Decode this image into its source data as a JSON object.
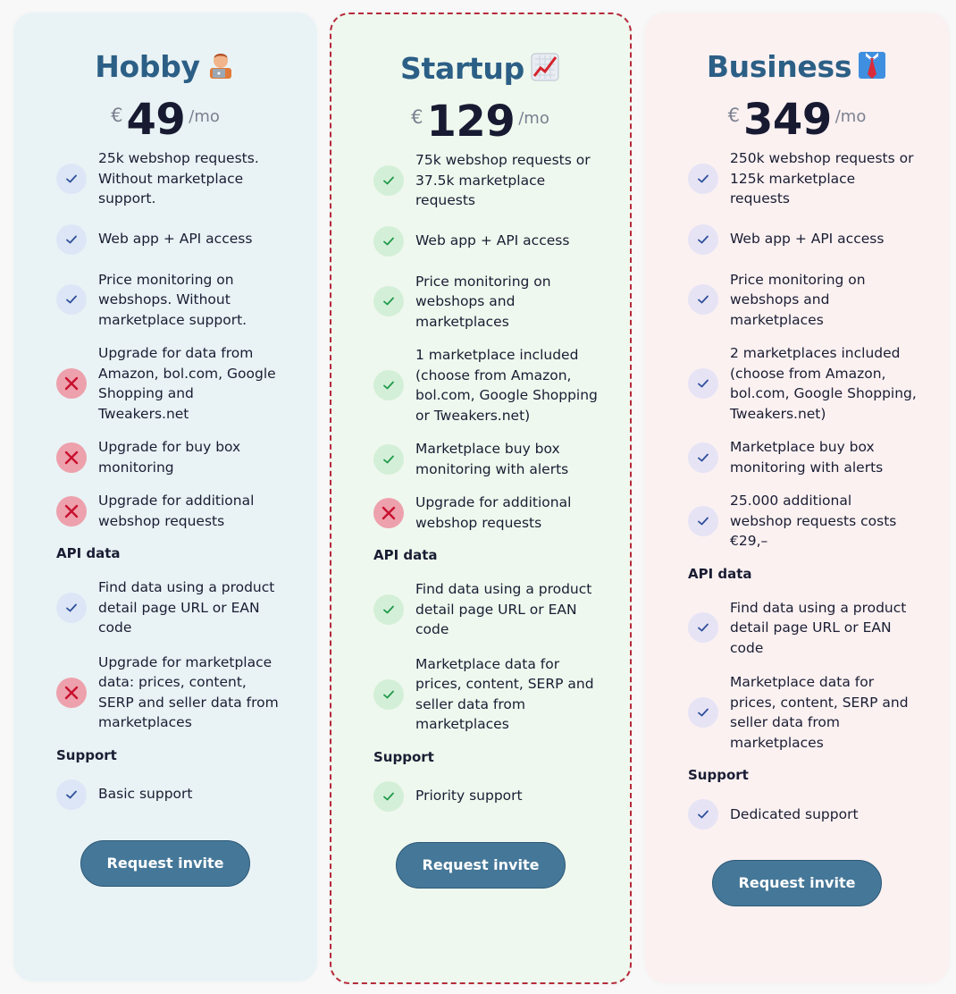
{
  "colors": {
    "check_blue_bg": "#dde6f6",
    "check_blue": "#2f4f9a",
    "check_green_bg": "#d4efd8",
    "check_green": "#1f9a4a",
    "check_purple_bg": "#e6e3f5",
    "check_purple": "#2f4f9a",
    "cross_bg": "#eda1ad",
    "cross": "#c8102e",
    "button": "#457798"
  },
  "plans": [
    {
      "name": "Hobby",
      "emoji": "🧑‍💻",
      "currency": "€",
      "amount": "49",
      "period": "/mo",
      "button": "Request invite",
      "features": [
        {
          "icon": "check",
          "text": "25k webshop requests. Without marketplace support."
        },
        {
          "icon": "check",
          "text": "Web app + API access"
        },
        {
          "icon": "check",
          "text": "Price monitoring on webshops. Without marketplace support."
        },
        {
          "icon": "cross",
          "text": "Upgrade for data from Amazon, bol.com, Google Shopping and Tweakers.net"
        },
        {
          "icon": "cross",
          "text": "Upgrade for buy box monitoring"
        },
        {
          "icon": "cross",
          "text": "Upgrade for additional webshop requests"
        }
      ],
      "api_label": "API data",
      "api": [
        {
          "icon": "check",
          "text": "Find data using a product detail page URL or EAN code"
        },
        {
          "icon": "cross",
          "text": "Upgrade for marketplace data: prices, content, SERP and seller data from marketplaces"
        }
      ],
      "support_label": "Support",
      "support": [
        {
          "icon": "check",
          "text": "Basic support"
        }
      ]
    },
    {
      "name": "Startup",
      "emoji": "📈",
      "currency": "€",
      "amount": "129",
      "period": "/mo",
      "button": "Request invite",
      "features": [
        {
          "icon": "check",
          "text": "75k webshop requests or 37.5k marketplace requests"
        },
        {
          "icon": "check",
          "text": "Web app + API access"
        },
        {
          "icon": "check",
          "text": "Price monitoring on webshops and marketplaces"
        },
        {
          "icon": "check",
          "text": "1 marketplace included (choose from Amazon, bol.com, Google Shopping or Tweakers.net)"
        },
        {
          "icon": "check",
          "text": "Marketplace buy box monitoring with alerts"
        },
        {
          "icon": "cross",
          "text": "Upgrade for additional webshop requests"
        }
      ],
      "api_label": "API data",
      "api": [
        {
          "icon": "check",
          "text": "Find data using a product detail page URL or EAN code"
        },
        {
          "icon": "check",
          "text": "Marketplace data for prices, content, SERP and seller data from marketplaces"
        }
      ],
      "support_label": "Support",
      "support": [
        {
          "icon": "check",
          "text": "Priority support"
        }
      ]
    },
    {
      "name": "Business",
      "emoji": "👔",
      "currency": "€",
      "amount": "349",
      "period": "/mo",
      "button": "Request invite",
      "features": [
        {
          "icon": "check",
          "text": "250k webshop requests or 125k marketplace requests"
        },
        {
          "icon": "check",
          "text": "Web app + API access"
        },
        {
          "icon": "check",
          "text": "Price monitoring on webshops and marketplaces"
        },
        {
          "icon": "check",
          "text": "2 marketplaces included (choose from Amazon, bol.com, Google Shopping, Tweakers.net)"
        },
        {
          "icon": "check",
          "text": "Marketplace buy box monitoring with alerts"
        },
        {
          "icon": "check",
          "text": "25.000 additional webshop requests costs €29,–"
        }
      ],
      "api_label": "API data",
      "api": [
        {
          "icon": "check",
          "text": "Find data using a product detail page URL or EAN code"
        },
        {
          "icon": "check",
          "text": "Marketplace data for prices, content, SERP and seller data from marketplaces"
        }
      ],
      "support_label": "Support",
      "support": [
        {
          "icon": "check",
          "text": "Dedicated support"
        }
      ]
    }
  ]
}
